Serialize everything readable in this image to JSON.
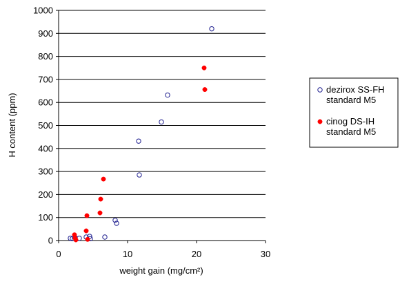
{
  "chart_data": {
    "type": "scatter",
    "title": "",
    "xlabel": "weight gain (mg/cm²)",
    "ylabel": "H content (ppm)",
    "xlim": [
      0,
      30
    ],
    "ylim": [
      0,
      1000
    ],
    "x_ticks": [
      0,
      10,
      20,
      30
    ],
    "y_ticks": [
      0,
      100,
      200,
      300,
      400,
      500,
      600,
      700,
      800,
      900,
      1000
    ],
    "grid": "horizontal",
    "legend_position": "right",
    "series": [
      {
        "name": "dezirox SS-FH standard M5",
        "legend_lines": [
          "dezirox SS-FH",
          "standard M5"
        ],
        "marker": "open-circle",
        "color": "#1f1f8f",
        "points": [
          {
            "x": 1.7,
            "y": 10
          },
          {
            "x": 2.0,
            "y": 8
          },
          {
            "x": 2.4,
            "y": 12
          },
          {
            "x": 3.0,
            "y": 10
          },
          {
            "x": 4.0,
            "y": 15
          },
          {
            "x": 4.5,
            "y": 18
          },
          {
            "x": 4.6,
            "y": 8
          },
          {
            "x": 6.7,
            "y": 15
          },
          {
            "x": 8.2,
            "y": 88
          },
          {
            "x": 8.4,
            "y": 75
          },
          {
            "x": 11.6,
            "y": 432
          },
          {
            "x": 11.7,
            "y": 285
          },
          {
            "x": 14.9,
            "y": 515
          },
          {
            "x": 15.8,
            "y": 632
          },
          {
            "x": 22.2,
            "y": 920
          }
        ]
      },
      {
        "name": "cinog DS-IH standard M5",
        "legend_lines": [
          "cinog DS-IH",
          "standard M5"
        ],
        "marker": "filled-circle",
        "color": "#ff0000",
        "points": [
          {
            "x": 2.3,
            "y": 25
          },
          {
            "x": 2.4,
            "y": 10
          },
          {
            "x": 2.5,
            "y": 3
          },
          {
            "x": 4.0,
            "y": 42
          },
          {
            "x": 4.1,
            "y": 108
          },
          {
            "x": 4.2,
            "y": 5
          },
          {
            "x": 6.0,
            "y": 120
          },
          {
            "x": 6.1,
            "y": 180
          },
          {
            "x": 6.5,
            "y": 267
          },
          {
            "x": 21.1,
            "y": 750
          },
          {
            "x": 21.2,
            "y": 656
          }
        ]
      }
    ]
  }
}
